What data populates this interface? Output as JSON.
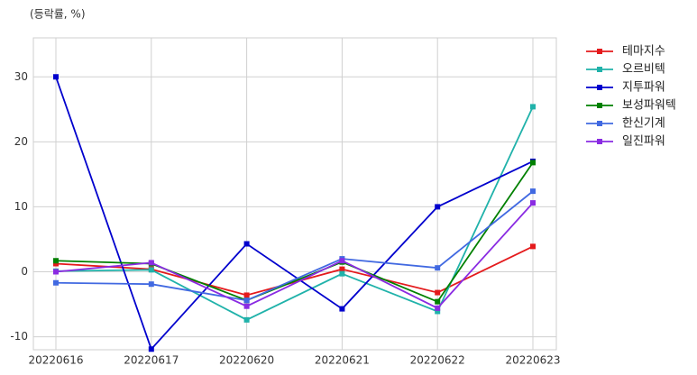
{
  "chart_data": {
    "type": "line",
    "y_label": "(등락률, %)",
    "categories": [
      "20220616",
      "20220617",
      "20220620",
      "20220621",
      "20220622",
      "20220623"
    ],
    "ylim": [
      -12,
      36
    ],
    "yticks": [
      -10,
      0,
      10,
      20,
      30
    ],
    "grid": true,
    "legend": "outside-right",
    "series": [
      {
        "name": "테마지수",
        "color": "#e41a1c",
        "values": [
          1.25,
          0.4,
          -3.6,
          0.4,
          -3.2,
          3.9
        ]
      },
      {
        "name": "오르비텍",
        "color": "#20b2aa",
        "values": [
          0.1,
          0.3,
          -7.4,
          -0.3,
          -6.1,
          25.4
        ]
      },
      {
        "name": "지투파워",
        "color": "#0000cd",
        "values": [
          30,
          -11.9,
          4.3,
          -5.7,
          10,
          17
        ]
      },
      {
        "name": "보성파워텍",
        "color": "#008000",
        "values": [
          1.7,
          1.25,
          -4.4,
          1.5,
          -4.6,
          16.8
        ]
      },
      {
        "name": "한신기계",
        "color": "#4169e1",
        "values": [
          -1.7,
          -1.9,
          -4.4,
          2,
          0.6,
          12.4
        ]
      },
      {
        "name": "일진파워",
        "color": "#8a2be2",
        "values": [
          0,
          1.4,
          -5.3,
          1.7,
          -5.6,
          10.6
        ]
      }
    ]
  }
}
